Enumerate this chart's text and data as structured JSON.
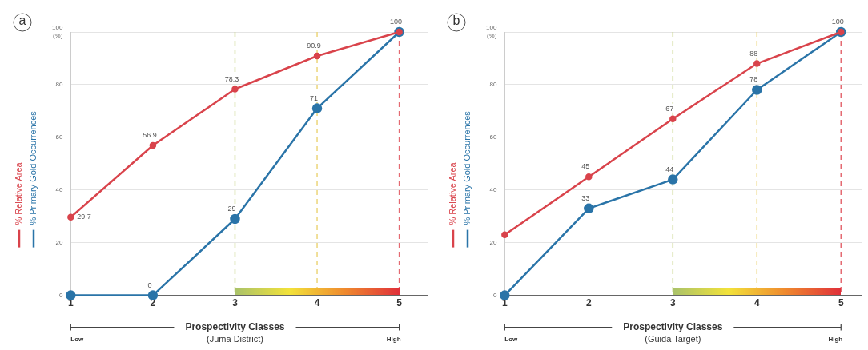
{
  "chart_data": [
    {
      "type": "line",
      "title": "a",
      "xlabel": "Prospectivity Classes\n(Juma District)",
      "annotations": [
        "Low",
        "High"
      ],
      "x": [
        1,
        2,
        3,
        4,
        5
      ],
      "series": [
        {
          "name": "% Relative Area",
          "color": "#d9434b",
          "values": [
            29.7,
            56.9,
            78.3,
            90.9,
            100
          ],
          "value_labels": [
            "29.7",
            "56.9",
            "78.3",
            "90.9",
            "100"
          ]
        },
        {
          "name": "% Primary Gold Occurrences",
          "color": "#2a74a8",
          "values": [
            0,
            0,
            29,
            71,
            100
          ],
          "value_labels": [
            null,
            "0",
            "29",
            "71",
            null
          ]
        }
      ],
      "xlim": [
        1,
        5.35
      ],
      "xticks": [
        1,
        2,
        3,
        4,
        5
      ],
      "ylim": [
        0,
        100
      ],
      "yticks": [
        0,
        20,
        40,
        60,
        80,
        {
          "value": 100,
          "label": "100\n(%)"
        }
      ],
      "grid": "y",
      "legend": "left",
      "marker": "circle",
      "line_style": "solid",
      "ref_lines": [
        {
          "axis": "x",
          "value": 3,
          "color": "#c9d48c",
          "line_style": "dashed"
        },
        {
          "axis": "x",
          "value": 4,
          "color": "#ecd67a",
          "line_style": "dashed"
        },
        {
          "axis": "x",
          "value": 5,
          "color": "#e46a72",
          "line_style": "dashed"
        }
      ]
    },
    {
      "type": "line",
      "title": "b",
      "xlabel": "Prospectivity Classes\n(Guida Target)",
      "annotations": [
        "Low",
        "High"
      ],
      "x": [
        1,
        2,
        3,
        4,
        5
      ],
      "series": [
        {
          "name": "% Relative Area",
          "color": "#d9434b",
          "values": [
            23,
            45,
            67,
            88,
            100
          ],
          "value_labels": [
            null,
            "45",
            "67",
            "88",
            "100"
          ]
        },
        {
          "name": "% Primary Gold Occurrences",
          "color": "#2a74a8",
          "values": [
            0,
            33,
            44,
            78,
            100
          ],
          "value_labels": [
            null,
            "33",
            "44",
            "78",
            null
          ]
        }
      ],
      "xlim": [
        1,
        5.25
      ],
      "xticks": [
        1,
        2,
        3,
        4,
        5
      ],
      "ylim": [
        0,
        100
      ],
      "yticks": [
        0,
        20,
        40,
        60,
        80,
        {
          "value": 100,
          "label": "100\n(%)"
        }
      ],
      "grid": "y",
      "legend": "left",
      "marker": "circle",
      "line_style": "solid",
      "ref_lines": [
        {
          "axis": "x",
          "value": 3,
          "color": "#c9d48c",
          "line_style": "dashed"
        },
        {
          "axis": "x",
          "value": 4,
          "color": "#ecd67a",
          "line_style": "dashed"
        },
        {
          "axis": "x",
          "value": 5,
          "color": "#e46a72",
          "line_style": "dashed"
        }
      ]
    }
  ]
}
